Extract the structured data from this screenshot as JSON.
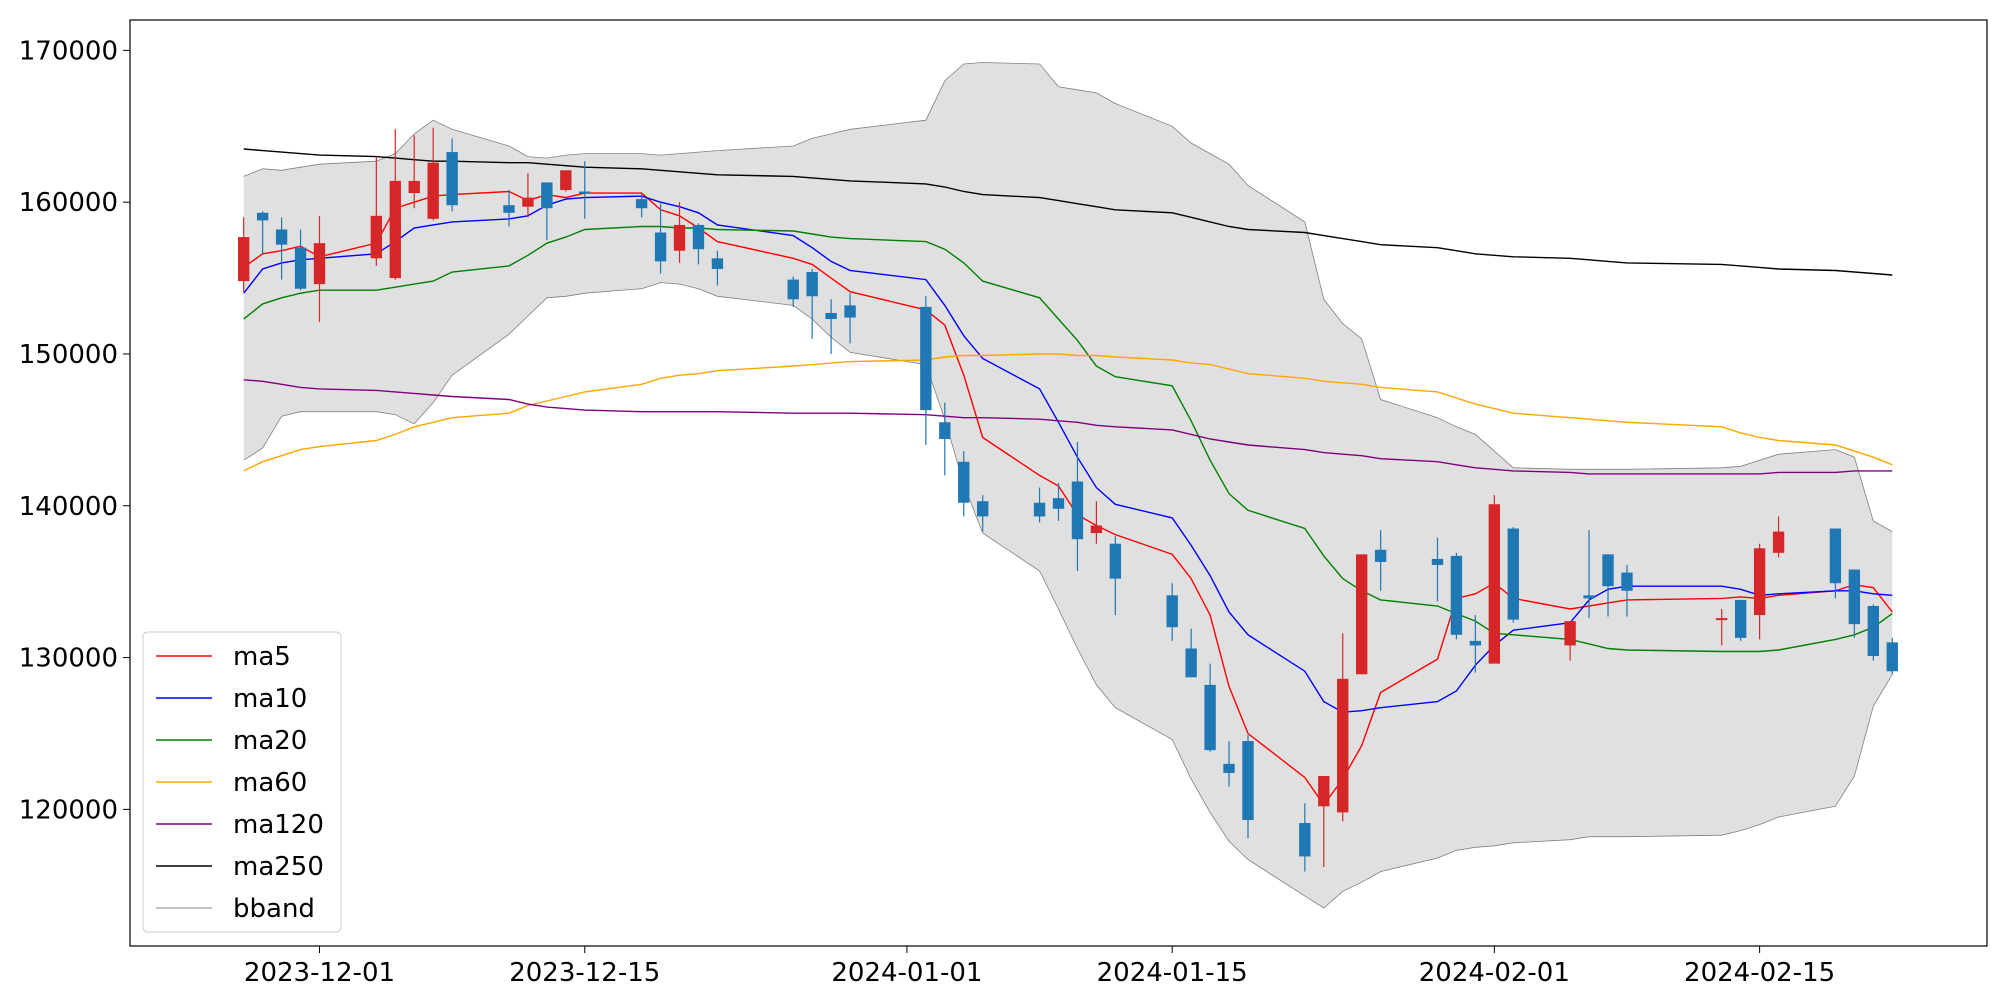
{
  "chart_data": {
    "type": "candlestick",
    "title": "",
    "xlabel": "",
    "ylabel": "",
    "xlim": [
      "2023-11-21",
      "2024-02-27"
    ],
    "ylim": [
      111000,
      172000
    ],
    "grid": false,
    "legend_position": "lower-left",
    "y_ticks": [
      120000,
      130000,
      140000,
      150000,
      160000,
      170000
    ],
    "y_tick_labels": [
      "120000",
      "130000",
      "140000",
      "150000",
      "160000",
      "170000"
    ],
    "x_ticks": [
      "2023-12-01",
      "2023-12-15",
      "2024-01-01",
      "2024-01-15",
      "2024-02-01",
      "2024-02-15"
    ],
    "x_tick_labels": [
      "2023-12-01",
      "2023-12-15",
      "2024-01-01",
      "2024-01-15",
      "2024-02-01",
      "2024-02-15"
    ],
    "colors": {
      "up": "#d62728",
      "down": "#1f77b4",
      "bband_fill": "#e0e0e0",
      "bband_edge": "#808080"
    },
    "dates": [
      "2023-11-27",
      "2023-11-28",
      "2023-11-29",
      "2023-11-30",
      "2023-12-01",
      "2023-12-04",
      "2023-12-05",
      "2023-12-06",
      "2023-12-07",
      "2023-12-08",
      "2023-12-11",
      "2023-12-12",
      "2023-12-13",
      "2023-12-14",
      "2023-12-15",
      "2023-12-18",
      "2023-12-19",
      "2023-12-20",
      "2023-12-21",
      "2023-12-22",
      "2023-12-26",
      "2023-12-27",
      "2023-12-28",
      "2023-12-29",
      "2024-01-02",
      "2024-01-03",
      "2024-01-04",
      "2024-01-05",
      "2024-01-08",
      "2024-01-09",
      "2024-01-10",
      "2024-01-11",
      "2024-01-12",
      "2024-01-15",
      "2024-01-16",
      "2024-01-17",
      "2024-01-18",
      "2024-01-19",
      "2024-01-22",
      "2024-01-23",
      "2024-01-24",
      "2024-01-25",
      "2024-01-26",
      "2024-01-29",
      "2024-01-30",
      "2024-01-31",
      "2024-02-01",
      "2024-02-02",
      "2024-02-05",
      "2024-02-06",
      "2024-02-07",
      "2024-02-08",
      "2024-02-13",
      "2024-02-14",
      "2024-02-15",
      "2024-02-16",
      "2024-02-19",
      "2024-02-20",
      "2024-02-21",
      "2024-02-22"
    ],
    "candles": {
      "open": [
        154800,
        159300,
        158200,
        157000,
        154600,
        156300,
        155000,
        160600,
        158900,
        163300,
        159800,
        159700,
        161300,
        160800,
        160700,
        160200,
        158000,
        156800,
        158500,
        156300,
        154900,
        155400,
        152700,
        153200,
        153100,
        145500,
        142900,
        140300,
        140200,
        140500,
        141600,
        138200,
        137500,
        134100,
        130600,
        128200,
        123000,
        124500,
        119100,
        120200,
        119800,
        128900,
        137100,
        136500,
        136700,
        131100,
        129600,
        138500,
        130800,
        134100,
        136800,
        135600,
        132600,
        133800,
        132800,
        136900,
        138500,
        135800,
        133400,
        131000
      ],
      "close": [
        157700,
        158800,
        157200,
        154300,
        157300,
        159100,
        161400,
        161400,
        162600,
        159800,
        159300,
        160300,
        159600,
        162100,
        160600,
        159600,
        156100,
        158500,
        156900,
        155600,
        153600,
        153800,
        152300,
        152400,
        146300,
        144400,
        140200,
        139300,
        139300,
        139800,
        137800,
        138700,
        135200,
        132000,
        128700,
        123900,
        122400,
        119300,
        116900,
        122200,
        128600,
        136800,
        136300,
        136100,
        131500,
        130800,
        140100,
        132500,
        132400,
        133900,
        134700,
        134400,
        132600,
        131300,
        137200,
        138300,
        134900,
        132200,
        130100,
        129100
      ],
      "high": [
        159000,
        159400,
        159000,
        158200,
        159100,
        163000,
        164800,
        164400,
        164900,
        164200,
        160800,
        161900,
        161300,
        162100,
        162700,
        160500,
        159900,
        160000,
        158600,
        156800,
        155100,
        155600,
        153600,
        154000,
        153800,
        146800,
        143600,
        140700,
        141200,
        141500,
        144200,
        140300,
        138000,
        134900,
        131900,
        129600,
        124500,
        124900,
        120400,
        122200,
        131600,
        136800,
        138400,
        137900,
        136900,
        132800,
        140700,
        138600,
        131900,
        138400,
        136800,
        136100,
        133200,
        133800,
        137500,
        139300,
        138400,
        135800,
        133500,
        131300
      ],
      "low": [
        154100,
        156600,
        154900,
        154200,
        152100,
        155800,
        154900,
        159600,
        158800,
        159400,
        158400,
        159000,
        157500,
        160700,
        158900,
        159000,
        155300,
        156000,
        155900,
        154500,
        153100,
        151000,
        150000,
        150700,
        144000,
        142000,
        139300,
        138300,
        138900,
        139000,
        135700,
        137500,
        132800,
        131100,
        128700,
        123800,
        121500,
        118100,
        115900,
        116200,
        119200,
        128900,
        134400,
        133700,
        131200,
        129000,
        129700,
        132300,
        129800,
        132600,
        132700,
        132700,
        130800,
        131100,
        131200,
        136600,
        133900,
        131300,
        129800,
        128900
      ]
    },
    "series": [
      {
        "name": "ma5",
        "color": "#ff0000",
        "values": [
          155700,
          156600,
          156800,
          157100,
          156400,
          157300,
          159600,
          160000,
          160400,
          160500,
          160700,
          160100,
          160500,
          160300,
          160600,
          160600,
          159500,
          159100,
          158300,
          157400,
          156300,
          155900,
          155000,
          154100,
          152900,
          151900,
          148600,
          144500,
          142000,
          141300,
          139400,
          138700,
          138100,
          136800,
          135200,
          132800,
          128100,
          125000,
          122100,
          120300,
          122000,
          124200,
          127700,
          129900,
          133900,
          134200,
          134900,
          133900,
          133200,
          133400,
          133600,
          133800,
          133900,
          134000,
          133900,
          134100,
          134400,
          134800,
          134600,
          133000
        ]
      },
      {
        "name": "ma10",
        "color": "#0000ff",
        "values": [
          154000,
          155600,
          156000,
          156200,
          156300,
          156600,
          157400,
          158300,
          158500,
          158700,
          158900,
          159100,
          159800,
          160200,
          160300,
          160400,
          160000,
          159700,
          159300,
          158500,
          157800,
          157000,
          156100,
          155500,
          154900,
          153200,
          151200,
          149700,
          147700,
          145500,
          143200,
          141200,
          140100,
          139200,
          137400,
          135400,
          133000,
          131500,
          129100,
          127100,
          126400,
          126500,
          126700,
          127100,
          127800,
          129500,
          130800,
          131800,
          132300,
          133800,
          134500,
          134700,
          134700,
          134500,
          134100,
          134200,
          134400,
          134400,
          134200,
          134100
        ]
      },
      {
        "name": "ma20",
        "color": "#008000",
        "values": [
          152300,
          153300,
          153700,
          154000,
          154200,
          154200,
          154400,
          154600,
          154800,
          155400,
          155800,
          156500,
          157300,
          157700,
          158200,
          158400,
          158400,
          158300,
          158300,
          158200,
          158100,
          157900,
          157700,
          157600,
          157400,
          156900,
          156000,
          154800,
          153700,
          152300,
          150900,
          149200,
          148500,
          147900,
          145600,
          143000,
          140800,
          139700,
          138500,
          136700,
          135200,
          134400,
          133800,
          133400,
          132900,
          132400,
          131600,
          131500,
          131200,
          130900,
          130600,
          130500,
          130400,
          130400,
          130400,
          130500,
          131200,
          131500,
          132000,
          132900
        ]
      },
      {
        "name": "ma60",
        "color": "#ffa500",
        "values": [
          142300,
          142900,
          143300,
          143700,
          143900,
          144300,
          144700,
          145200,
          145500,
          145800,
          146100,
          146600,
          146900,
          147200,
          147500,
          148000,
          148400,
          148600,
          148700,
          148900,
          149200,
          149300,
          149400,
          149500,
          149600,
          149800,
          149900,
          149900,
          150000,
          150000,
          149900,
          149900,
          149800,
          149600,
          149400,
          149300,
          149000,
          148700,
          148400,
          148200,
          148100,
          148000,
          147800,
          147500,
          147100,
          146700,
          146400,
          146100,
          145800,
          145700,
          145600,
          145500,
          145200,
          144800,
          144500,
          144300,
          144000,
          143600,
          143200,
          142700
        ]
      },
      {
        "name": "ma120",
        "color": "#800080",
        "values": [
          148300,
          148200,
          148000,
          147800,
          147700,
          147600,
          147500,
          147400,
          147300,
          147200,
          147000,
          146700,
          146500,
          146400,
          146300,
          146200,
          146200,
          146200,
          146200,
          146200,
          146100,
          146100,
          146100,
          146100,
          146000,
          145900,
          145800,
          145800,
          145700,
          145600,
          145500,
          145300,
          145200,
          145000,
          144700,
          144400,
          144200,
          144000,
          143700,
          143500,
          143400,
          143300,
          143100,
          142900,
          142700,
          142500,
          142400,
          142300,
          142200,
          142100,
          142100,
          142100,
          142100,
          142100,
          142100,
          142200,
          142200,
          142300,
          142300,
          142300
        ]
      },
      {
        "name": "ma250",
        "color": "#000000",
        "values": [
          163500,
          163400,
          163300,
          163200,
          163100,
          163000,
          162900,
          162800,
          162700,
          162700,
          162600,
          162600,
          162500,
          162400,
          162300,
          162200,
          162100,
          162000,
          161900,
          161800,
          161700,
          161600,
          161500,
          161400,
          161200,
          161000,
          160700,
          160500,
          160300,
          160100,
          159900,
          159700,
          159500,
          159300,
          159000,
          158700,
          158400,
          158200,
          158000,
          157800,
          157600,
          157400,
          157200,
          157000,
          156800,
          156600,
          156500,
          156400,
          156300,
          156200,
          156100,
          156000,
          155900,
          155800,
          155700,
          155600,
          155500,
          155400,
          155300,
          155200
        ]
      }
    ],
    "bband": {
      "name": "bband",
      "upper": [
        161700,
        162200,
        162100,
        162300,
        162500,
        162700,
        163200,
        164500,
        165400,
        164800,
        163700,
        163000,
        162900,
        163100,
        163200,
        163200,
        163100,
        163200,
        163300,
        163400,
        163700,
        164200,
        164500,
        164800,
        165400,
        168000,
        169100,
        169200,
        169100,
        167600,
        167400,
        167200,
        166500,
        165000,
        163900,
        163200,
        162500,
        161100,
        158700,
        153600,
        152000,
        151000,
        147000,
        145800,
        145200,
        144700,
        143600,
        142500,
        142400,
        142400,
        142400,
        142400,
        142500,
        142600,
        143000,
        143400,
        143700,
        143200,
        139000,
        138300
      ],
      "lower": [
        143000,
        143800,
        145900,
        146200,
        146200,
        146200,
        146000,
        145400,
        146800,
        148600,
        151300,
        152500,
        153700,
        153800,
        154000,
        154300,
        154700,
        154600,
        154300,
        153800,
        153200,
        152300,
        151100,
        150100,
        149300,
        145700,
        141400,
        138200,
        135700,
        133200,
        130600,
        128200,
        126700,
        124600,
        122000,
        119800,
        117900,
        116700,
        114300,
        113500,
        114600,
        115200,
        115900,
        116800,
        117300,
        117500,
        117600,
        117800,
        118000,
        118200,
        118200,
        118200,
        118300,
        118600,
        119000,
        119500,
        120200,
        122200,
        126800,
        128900
      ]
    },
    "legend": [
      "ma5",
      "ma10",
      "ma20",
      "ma60",
      "ma120",
      "ma250",
      "bband"
    ]
  }
}
